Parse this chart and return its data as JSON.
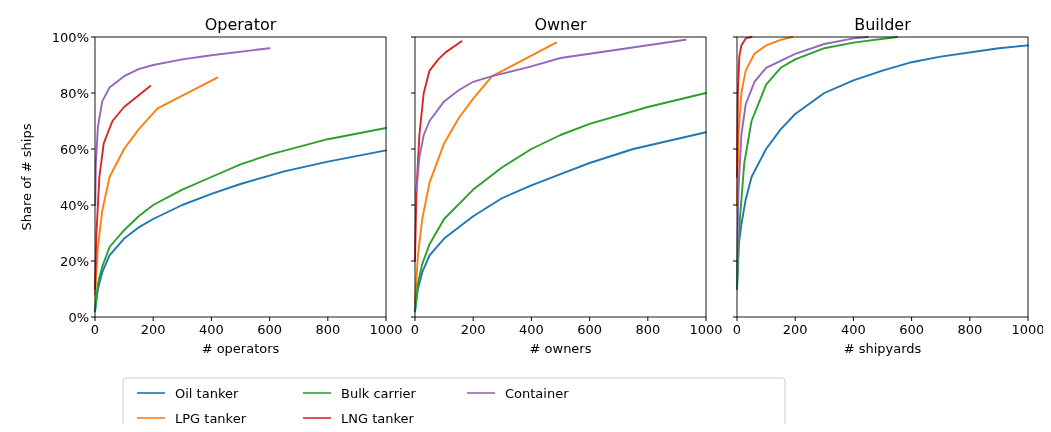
{
  "chart_data": [
    {
      "type": "line",
      "title": "Operator",
      "xlabel": "# operators",
      "ylabel": "Share of # ships",
      "xlim": [
        0,
        1000
      ],
      "xticks": [
        0,
        200,
        400,
        600,
        800,
        1000
      ],
      "ylim": [
        0,
        100
      ],
      "yticks": [
        {
          "value": 0,
          "label": "0%"
        },
        {
          "value": 20,
          "label": "20%"
        },
        {
          "value": 40,
          "label": "40%"
        },
        {
          "value": 60,
          "label": "60%"
        },
        {
          "value": 80,
          "label": "80%"
        },
        {
          "value": 100,
          "label": "100%"
        }
      ],
      "legend": "bottom",
      "series": [
        {
          "name": "Oil tanker",
          "color": "#1f77b4",
          "x": [
            0,
            10,
            25,
            50,
            100,
            150,
            200,
            300,
            400,
            500,
            600,
            650,
            800,
            1000
          ],
          "values": [
            2,
            10,
            16,
            22,
            28,
            32,
            35,
            40,
            44,
            47.5,
            50.5,
            52,
            55.5,
            59.5
          ]
        },
        {
          "name": "LPG tanker",
          "color": "#ff7f0e",
          "x": [
            0,
            10,
            25,
            50,
            100,
            150,
            215,
            420
          ],
          "values": [
            8,
            25,
            38,
            50,
            60,
            67,
            74.5,
            85.5
          ]
        },
        {
          "name": "Bulk carrier",
          "color": "#2ca02c",
          "x": [
            0,
            10,
            25,
            50,
            100,
            150,
            200,
            300,
            400,
            500,
            600,
            800,
            1000
          ],
          "values": [
            2,
            12,
            18,
            25,
            31,
            36,
            40,
            45.5,
            50,
            54.5,
            58,
            63.5,
            67.5
          ]
        },
        {
          "name": "LNG tanker",
          "color": "#d62728",
          "x": [
            0,
            5,
            15,
            30,
            60,
            100,
            190
          ],
          "values": [
            10,
            30,
            50,
            62,
            70,
            75,
            82.5
          ]
        },
        {
          "name": "Container",
          "color": "#9467bd",
          "x": [
            1,
            3,
            10,
            25,
            50,
            100,
            150,
            200,
            300,
            400,
            600
          ],
          "values": [
            40,
            55,
            68,
            77,
            82,
            86,
            88.5,
            90,
            92,
            93.5,
            96
          ]
        }
      ]
    },
    {
      "type": "line",
      "title": "Owner",
      "xlabel": "# owners",
      "xlim": [
        0,
        1000
      ],
      "xticks": [
        0,
        200,
        400,
        600,
        800,
        1000
      ],
      "ylim": [
        0,
        100
      ],
      "yticks": [
        {
          "value": 0,
          "label": null
        },
        {
          "value": 20,
          "label": null
        },
        {
          "value": 40,
          "label": null
        },
        {
          "value": 60,
          "label": null
        },
        {
          "value": 80,
          "label": null
        },
        {
          "value": 100,
          "label": null
        }
      ],
      "tick_labels": "x",
      "series": [
        {
          "color": "#1f77b4",
          "x": [
            0,
            10,
            25,
            50,
            100,
            200,
            300,
            400,
            500,
            600,
            750,
            1000
          ],
          "values": [
            2,
            10,
            16,
            22,
            28,
            36,
            42.5,
            47,
            51,
            55,
            60,
            66
          ]
        },
        {
          "color": "#ff7f0e",
          "x": [
            0,
            10,
            25,
            50,
            100,
            150,
            200,
            265,
            485
          ],
          "values": [
            5,
            22,
            35,
            48,
            62,
            71,
            78,
            86,
            98
          ]
        },
        {
          "color": "#2ca02c",
          "x": [
            0,
            10,
            25,
            50,
            100,
            200,
            300,
            400,
            500,
            600,
            800,
            1000
          ],
          "values": [
            2,
            12,
            19,
            26,
            35,
            45.5,
            53.5,
            60,
            65,
            69,
            75,
            80
          ]
        },
        {
          "color": "#d62728",
          "x": [
            0,
            5,
            15,
            30,
            50,
            80,
            105,
            160
          ],
          "values": [
            20,
            45,
            65,
            80,
            88,
            92,
            94.5,
            98.5
          ]
        },
        {
          "color": "#9467bd",
          "x": [
            5,
            15,
            30,
            50,
            100,
            150,
            200,
            265,
            400,
            500,
            930
          ],
          "values": [
            45,
            57,
            65,
            70,
            77,
            81,
            84,
            86,
            89.5,
            92.5,
            99
          ]
        }
      ]
    },
    {
      "type": "line",
      "title": "Builder",
      "xlabel": "# shipyards",
      "xlim": [
        0,
        1000
      ],
      "xticks": [
        0,
        200,
        400,
        600,
        800,
        1000
      ],
      "ylim": [
        0,
        100
      ],
      "yticks": [
        {
          "value": 0,
          "label": null
        },
        {
          "value": 20,
          "label": null
        },
        {
          "value": 40,
          "label": null
        },
        {
          "value": 60,
          "label": null
        },
        {
          "value": 80,
          "label": null
        },
        {
          "value": 100,
          "label": null
        }
      ],
      "tick_labels": "x",
      "series": [
        {
          "color": "#1f77b4",
          "x": [
            0,
            5,
            15,
            30,
            50,
            100,
            150,
            200,
            300,
            400,
            500,
            600,
            700,
            900,
            1000
          ],
          "values": [
            10,
            25,
            33,
            42,
            50,
            60,
            67,
            72.5,
            80,
            84.5,
            88,
            91,
            93,
            96,
            97
          ]
        },
        {
          "color": "#ff7f0e",
          "x": [
            0,
            5,
            15,
            30,
            60,
            100,
            150,
            190
          ],
          "values": [
            40,
            65,
            80,
            88,
            94,
            97,
            99,
            100
          ]
        },
        {
          "color": "#2ca02c",
          "x": [
            0,
            10,
            25,
            50,
            100,
            150,
            200,
            300,
            400,
            550
          ],
          "values": [
            10,
            35,
            55,
            70,
            83,
            89,
            92,
            96,
            98,
            100
          ]
        },
        {
          "color": "#d62728",
          "x": [
            0,
            3,
            8,
            15,
            30,
            50
          ],
          "values": [
            50,
            80,
            93,
            97,
            99.5,
            100
          ]
        },
        {
          "color": "#9467bd",
          "x": [
            0,
            5,
            15,
            30,
            60,
            100,
            200,
            300,
            400,
            450
          ],
          "values": [
            15,
            45,
            65,
            76,
            84,
            89,
            94,
            97.5,
            99.5,
            100
          ]
        }
      ]
    }
  ]
}
